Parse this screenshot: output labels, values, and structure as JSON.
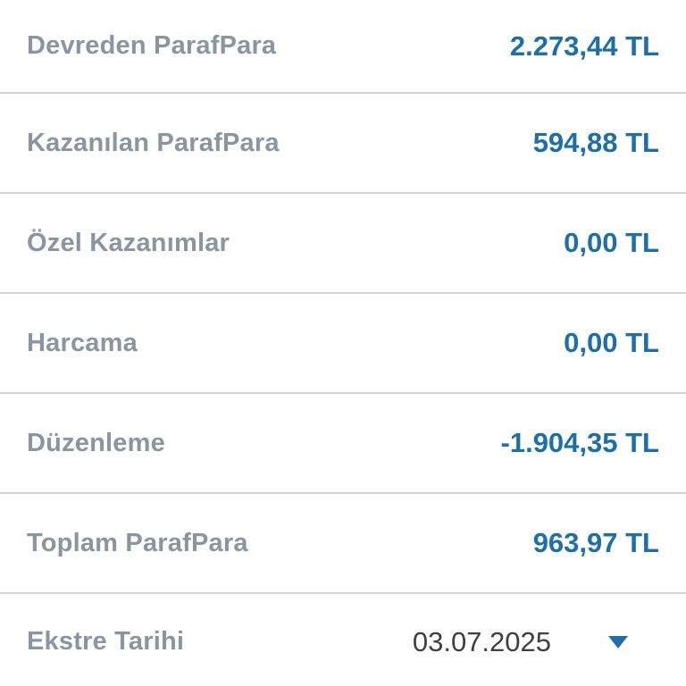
{
  "summary": {
    "rows": [
      {
        "label": "Devreden ParafPara",
        "value": "2.273,44 TL"
      },
      {
        "label": "Kazanılan ParafPara",
        "value": "594,88 TL"
      },
      {
        "label": "Özel Kazanımlar",
        "value": "0,00 TL"
      },
      {
        "label": "Harcama",
        "value": "0,00 TL"
      },
      {
        "label": "Düzenleme",
        "value": "-1.904,35 TL"
      },
      {
        "label": "Toplam ParafPara",
        "value": "963,97 TL"
      }
    ]
  },
  "footer": {
    "label": "Ekstre Tarihi",
    "date_value": "03.07.2025",
    "dropdown_icon": "chevron-down-icon"
  },
  "colors": {
    "label_gray": "#8B95A2",
    "value_blue": "#1C6FA9",
    "date_text": "#3F3F3F",
    "divider": "#D3D3D3",
    "dropdown_blue": "#1D6FAE",
    "background": "#FFFFFF"
  }
}
